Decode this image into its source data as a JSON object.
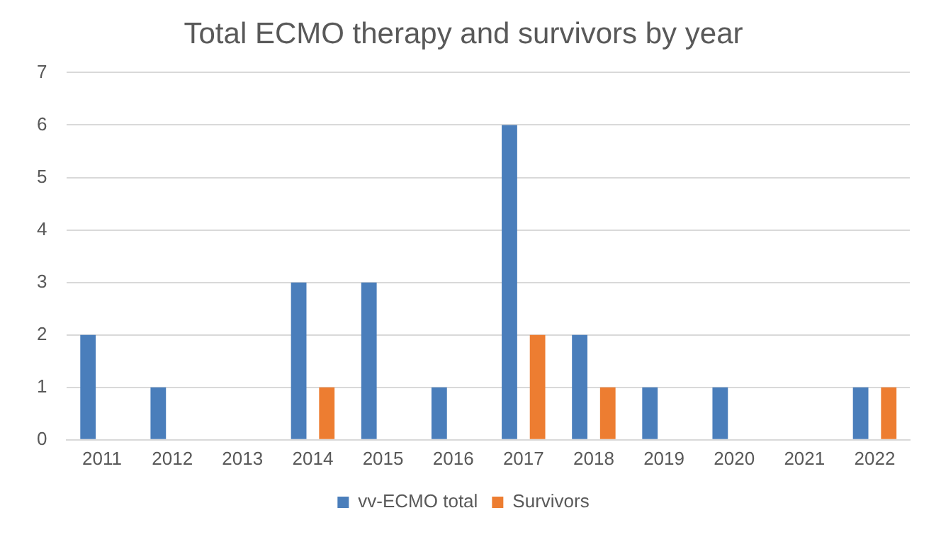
{
  "chart_data": {
    "type": "bar",
    "title": "Total ECMO therapy and survivors by year",
    "categories": [
      "2011",
      "2012",
      "2013",
      "2014",
      "2015",
      "2016",
      "2017",
      "2018",
      "2019",
      "2020",
      "2021",
      "2022"
    ],
    "series": [
      {
        "name": "vv-ECMO total",
        "color": "#4a7ebb",
        "values": [
          2,
          1,
          0,
          3,
          3,
          1,
          6,
          2,
          1,
          1,
          0,
          1
        ]
      },
      {
        "name": "Survivors",
        "color": "#ed7d31",
        "values": [
          0,
          0,
          0,
          1,
          0,
          0,
          2,
          1,
          0,
          0,
          0,
          1
        ]
      }
    ],
    "ylim": [
      0,
      7
    ],
    "yticks": [
      0,
      1,
      2,
      3,
      4,
      5,
      6,
      7
    ],
    "grid": "y",
    "legend": "bottom"
  }
}
